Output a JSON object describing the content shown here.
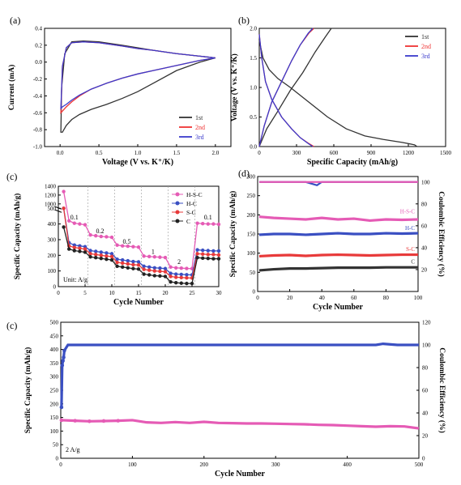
{
  "chart_data": [
    {
      "id": "a",
      "panel_label": "(a)",
      "type": "line",
      "xlabel": "Voltage (V vs. K⁺/K)",
      "ylabel": "Current (mA)",
      "xlim": [
        -0.2,
        2.2
      ],
      "ylim": [
        -1.0,
        0.4
      ],
      "xticks": [
        "0.0",
        "0.5",
        "1.0",
        "1.5",
        "2.0"
      ],
      "yticks": [
        "-1.0",
        "-0.8",
        "-0.6",
        "-0.4",
        "-0.2",
        "0.0",
        "0.2",
        "0.4"
      ],
      "legend": [
        "1st",
        "2nd",
        "3rd"
      ],
      "legend_position": "bottom-right",
      "series": [
        {
          "name": "1st",
          "color": "#333333",
          "x": [
            2.0,
            1.8,
            1.5,
            1.2,
            1.0,
            0.8,
            0.6,
            0.4,
            0.25,
            0.15,
            0.08,
            0.03,
            0.01,
            0.02,
            0.06,
            0.15,
            0.3,
            0.5,
            0.8,
            1.0,
            1.2,
            1.5,
            1.8,
            2.0
          ],
          "y": [
            0.05,
            0.0,
            -0.1,
            -0.25,
            -0.35,
            -0.43,
            -0.5,
            -0.56,
            -0.62,
            -0.68,
            -0.75,
            -0.83,
            -0.83,
            -0.3,
            0.1,
            0.24,
            0.25,
            0.24,
            0.2,
            0.17,
            0.14,
            0.1,
            0.07,
            0.05
          ]
        },
        {
          "name": "2nd",
          "color": "#ee3333",
          "x": [
            2.0,
            1.8,
            1.5,
            1.2,
            1.0,
            0.8,
            0.6,
            0.4,
            0.25,
            0.15,
            0.08,
            0.03,
            0.01,
            0.03,
            0.08,
            0.15,
            0.3,
            0.5,
            0.8,
            1.0,
            1.2,
            1.5,
            1.8,
            2.0
          ],
          "y": [
            0.05,
            0.02,
            -0.04,
            -0.1,
            -0.14,
            -0.19,
            -0.25,
            -0.32,
            -0.4,
            -0.47,
            -0.53,
            -0.58,
            -0.6,
            -0.05,
            0.17,
            0.23,
            0.24,
            0.23,
            0.19,
            0.16,
            0.14,
            0.1,
            0.07,
            0.05
          ]
        },
        {
          "name": "3rd",
          "color": "#3b3bcc",
          "x": [
            2.0,
            1.8,
            1.5,
            1.2,
            1.0,
            0.8,
            0.6,
            0.4,
            0.25,
            0.15,
            0.08,
            0.03,
            0.01,
            0.03,
            0.08,
            0.15,
            0.3,
            0.5,
            0.8,
            1.0,
            1.2,
            1.5,
            1.8,
            2.0
          ],
          "y": [
            0.05,
            0.02,
            -0.04,
            -0.1,
            -0.14,
            -0.19,
            -0.25,
            -0.32,
            -0.39,
            -0.45,
            -0.5,
            -0.53,
            -0.55,
            -0.05,
            0.17,
            0.23,
            0.24,
            0.23,
            0.19,
            0.16,
            0.14,
            0.1,
            0.07,
            0.05
          ]
        }
      ]
    },
    {
      "id": "b",
      "panel_label": "(b)",
      "type": "line",
      "xlabel": "Specific Capacity (mAh/g)",
      "ylabel": "Voltage (V vs. K⁺/K)",
      "xlim": [
        0,
        1500
      ],
      "ylim": [
        0.0,
        2.0
      ],
      "xticks": [
        "0",
        "300",
        "600",
        "900",
        "1200",
        "1500"
      ],
      "yticks": [
        "0.0",
        "0.5",
        "1.0",
        "1.5",
        "2.0"
      ],
      "legend": [
        "1st",
        "2nd",
        "3rd"
      ],
      "legend_position": "top-right",
      "series": [
        {
          "name": "1st discharge",
          "color": "#333333",
          "x": [
            0,
            30,
            80,
            150,
            250,
            400,
            550,
            700,
            850,
            1000,
            1150,
            1250,
            1270
          ],
          "y": [
            1.8,
            1.5,
            1.3,
            1.15,
            1.0,
            0.75,
            0.5,
            0.3,
            0.18,
            0.12,
            0.07,
            0.03,
            0.0
          ]
        },
        {
          "name": "1st charge",
          "color": "#333333",
          "x": [
            0,
            60,
            150,
            250,
            350,
            450,
            530,
            580
          ],
          "y": [
            0.0,
            0.3,
            0.6,
            0.95,
            1.25,
            1.6,
            1.85,
            2.0
          ]
        },
        {
          "name": "2nd discharge",
          "color": "#ee3333",
          "x": [
            0,
            20,
            50,
            100,
            180,
            260,
            330,
            400,
            440
          ],
          "y": [
            1.9,
            1.5,
            1.1,
            0.8,
            0.5,
            0.3,
            0.15,
            0.05,
            0.0
          ]
        },
        {
          "name": "2nd charge",
          "color": "#ee3333",
          "x": [
            0,
            40,
            100,
            180,
            260,
            330,
            400,
            440
          ],
          "y": [
            0.0,
            0.35,
            0.75,
            1.1,
            1.45,
            1.72,
            1.92,
            2.0
          ]
        },
        {
          "name": "3rd discharge",
          "color": "#3b3bcc",
          "x": [
            0,
            20,
            50,
            100,
            180,
            260,
            330,
            395,
            430
          ],
          "y": [
            1.9,
            1.5,
            1.1,
            0.8,
            0.5,
            0.3,
            0.15,
            0.05,
            0.0
          ]
        },
        {
          "name": "3rd charge",
          "color": "#3b3bcc",
          "x": [
            0,
            40,
            100,
            180,
            260,
            330,
            395,
            430
          ],
          "y": [
            0.0,
            0.35,
            0.75,
            1.1,
            1.45,
            1.72,
            1.92,
            2.0
          ]
        }
      ]
    },
    {
      "id": "c",
      "panel_label": "(c)",
      "type": "scatter",
      "xlabel": "Cycle Number",
      "ylabel": "Specific Capacity (mAh/g)",
      "xlim": [
        0,
        30
      ],
      "ylim": [
        0,
        1400
      ],
      "xticks": [
        "0",
        "5",
        "10",
        "15",
        "20",
        "25",
        "30"
      ],
      "yticks": [
        "0",
        "100",
        "200",
        "300",
        "400",
        "500",
        "1000",
        "1200",
        "1400"
      ],
      "axis_break": [
        500,
        900
      ],
      "legend": [
        "H-S-C",
        "H-C",
        "S-C",
        "C"
      ],
      "legend_position": "top-right",
      "annotations": [
        "0.1",
        "0.2",
        "0.5",
        "1",
        "2",
        "0.1",
        "Unit: A/g"
      ],
      "annotation_x": [
        3,
        7.8,
        12.8,
        17.7,
        22.6,
        28
      ],
      "annotation_y": [
        430,
        340,
        275,
        210,
        145,
        430
      ],
      "x": [
        1,
        2,
        3,
        4,
        5,
        6,
        7,
        8,
        9,
        10,
        11,
        12,
        13,
        14,
        15,
        16,
        17,
        18,
        19,
        20,
        21,
        22,
        23,
        24,
        25,
        26,
        27,
        28,
        29,
        30
      ],
      "series": [
        {
          "name": "H-S-C",
          "color": "#e55bb5",
          "values": [
            1280,
            420,
            405,
            400,
            395,
            330,
            325,
            320,
            318,
            315,
            265,
            260,
            258,
            255,
            252,
            195,
            192,
            190,
            188,
            186,
            125,
            120,
            118,
            116,
            115,
            405,
            402,
            400,
            400,
            398
          ]
        },
        {
          "name": "H-C",
          "color": "#3a4fc2",
          "values": [
            580,
            280,
            265,
            260,
            255,
            230,
            225,
            220,
            215,
            210,
            175,
            170,
            165,
            160,
            158,
            130,
            125,
            120,
            118,
            115,
            85,
            80,
            78,
            76,
            75,
            235,
            232,
            230,
            228,
            228
          ]
        },
        {
          "name": "S-C",
          "color": "#e83a3a",
          "values": [
            880,
            260,
            250,
            245,
            240,
            210,
            205,
            200,
            195,
            192,
            155,
            150,
            145,
            140,
            138,
            110,
            105,
            100,
            98,
            95,
            65,
            60,
            58,
            56,
            55,
            210,
            208,
            205,
            205,
            202
          ]
        },
        {
          "name": "C",
          "color": "#222222",
          "values": [
            380,
            240,
            230,
            225,
            220,
            190,
            185,
            180,
            175,
            170,
            130,
            125,
            120,
            115,
            112,
            80,
            75,
            70,
            68,
            65,
            30,
            25,
            22,
            20,
            20,
            185,
            182,
            180,
            178,
            178
          ]
        }
      ]
    },
    {
      "id": "d",
      "panel_label": "(d)",
      "type": "scatter",
      "xlabel": "Cycle Number",
      "ylabel": "Specific Capacity (mAh/g)",
      "y2label": "Coulombic Efficiency (%)",
      "xlim": [
        0,
        100
      ],
      "ylim": [
        0,
        300
      ],
      "y2lim": [
        0,
        105
      ],
      "xticks": [
        "0",
        "20",
        "40",
        "60",
        "80",
        "100"
      ],
      "yticks": [
        "0",
        "50",
        "100",
        "150",
        "200",
        "250",
        "300"
      ],
      "y2ticks": [
        "20",
        "40",
        "60",
        "80",
        "100"
      ],
      "series_labels": [
        "H-S-C",
        "H-C",
        "S-C",
        "C"
      ],
      "series": [
        {
          "name": "H-S-C",
          "color": "#e55bb5",
          "x": [
            1,
            10,
            20,
            30,
            40,
            50,
            60,
            70,
            80,
            90,
            100
          ],
          "values": [
            195,
            192,
            190,
            188,
            192,
            188,
            190,
            185,
            188,
            187,
            188
          ]
        },
        {
          "name": "H-C",
          "color": "#3a4fc2",
          "x": [
            1,
            10,
            20,
            30,
            40,
            50,
            60,
            70,
            80,
            90,
            100
          ],
          "values": [
            148,
            150,
            150,
            148,
            150,
            152,
            150,
            150,
            152,
            151,
            152
          ]
        },
        {
          "name": "S-C",
          "color": "#e83a3a",
          "x": [
            1,
            10,
            20,
            30,
            40,
            50,
            60,
            70,
            80,
            90,
            100
          ],
          "values": [
            92,
            94,
            95,
            93,
            95,
            96,
            95,
            94,
            95,
            96,
            96
          ]
        },
        {
          "name": "C",
          "color": "#333333",
          "x": [
            1,
            10,
            20,
            30,
            40,
            50,
            60,
            70,
            80,
            90,
            100
          ],
          "values": [
            55,
            58,
            60,
            60,
            61,
            62,
            62,
            62,
            63,
            63,
            63
          ]
        },
        {
          "name": "CE",
          "axis": "y2",
          "color": "#3a4fc2",
          "x": [
            1,
            10,
            20,
            30,
            37,
            40,
            50,
            60,
            70,
            80,
            90,
            100
          ],
          "values": [
            100,
            100,
            100,
            100,
            97,
            100,
            100,
            100,
            100,
            100,
            100,
            100
          ]
        },
        {
          "name": "CE",
          "axis": "y2",
          "color": "#e55bb5",
          "x": [
            1,
            10,
            20,
            30,
            40,
            50,
            60,
            70,
            80,
            90,
            100
          ],
          "values": [
            100,
            100,
            100,
            100,
            100,
            100,
            100,
            100,
            100,
            100,
            100
          ]
        }
      ]
    },
    {
      "id": "e",
      "panel_label": "(c)",
      "type": "scatter",
      "xlabel": "Cycle Number",
      "ylabel": "Specific Capacity (mAh/g)",
      "y2label": "Coulombic Efficiency (%)",
      "xlim": [
        0,
        500
      ],
      "ylim": [
        0,
        500
      ],
      "y2lim": [
        0,
        120
      ],
      "xticks": [
        "0",
        "100",
        "200",
        "300",
        "400",
        "500"
      ],
      "yticks": [
        "0",
        "50",
        "100",
        "150",
        "200",
        "250",
        "300",
        "350",
        "400",
        "450",
        "500"
      ],
      "y2ticks": [
        "0",
        "20",
        "40",
        "60",
        "80",
        "100",
        "120"
      ],
      "annotation": "2 A/g",
      "series": [
        {
          "name": "Specific Capacity",
          "color": "#e55bb5",
          "x": [
            1,
            20,
            40,
            60,
            80,
            100,
            120,
            140,
            160,
            180,
            200,
            220,
            240,
            260,
            280,
            300,
            320,
            340,
            360,
            380,
            400,
            420,
            440,
            460,
            480,
            500
          ],
          "values": [
            140,
            138,
            136,
            137,
            138,
            140,
            132,
            130,
            133,
            130,
            134,
            130,
            129,
            128,
            128,
            127,
            126,
            125,
            123,
            122,
            120,
            118,
            116,
            118,
            117,
            110
          ]
        },
        {
          "name": "Coulombic Efficiency",
          "axis": "y2",
          "color": "#3a4fc2",
          "x": [
            1,
            2,
            3,
            4,
            5,
            10,
            20,
            40,
            60,
            80,
            100,
            150,
            200,
            250,
            300,
            350,
            400,
            440,
            450,
            470,
            500
          ],
          "values": [
            45,
            82,
            86,
            89,
            95,
            100,
            100,
            100,
            100,
            100,
            100,
            100,
            100,
            100,
            100,
            100,
            100,
            100,
            101,
            100,
            100
          ]
        }
      ]
    }
  ]
}
